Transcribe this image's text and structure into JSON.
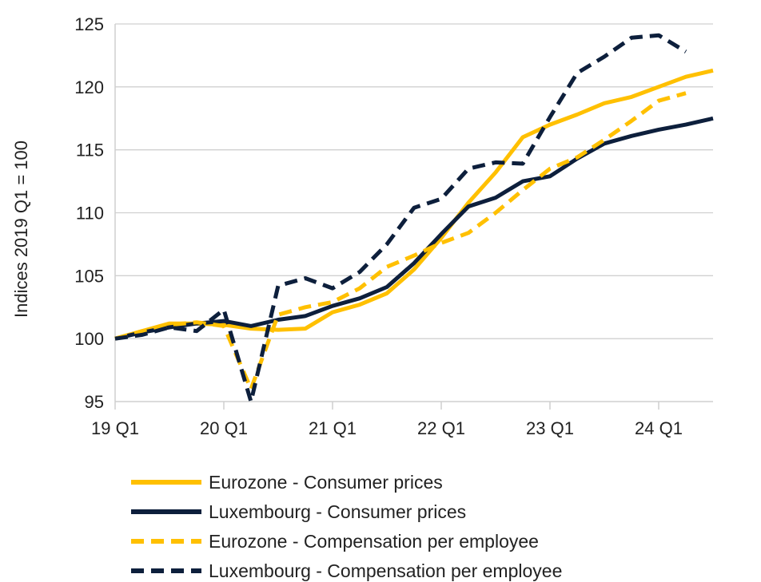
{
  "chart_data": {
    "type": "line",
    "ylabel": "Indices 2019 Q1 = 100",
    "ylim": [
      95,
      125
    ],
    "yticks": [
      95,
      100,
      105,
      110,
      115,
      120,
      125
    ],
    "x_quarters": [
      "19 Q1",
      "19 Q2",
      "19 Q3",
      "19 Q4",
      "20 Q1",
      "20 Q2",
      "20 Q3",
      "20 Q4",
      "21 Q1",
      "21 Q2",
      "21 Q3",
      "21 Q4",
      "22 Q1",
      "22 Q2",
      "22 Q3",
      "22 Q4",
      "23 Q1",
      "23 Q2",
      "23 Q3",
      "23 Q4",
      "24 Q1",
      "24 Q2",
      "24 Q3"
    ],
    "xtick_labels": [
      "19 Q1",
      "20 Q1",
      "21 Q1",
      "22 Q1",
      "23 Q1",
      "24 Q1"
    ],
    "xtick_positions": [
      0,
      4,
      8,
      12,
      16,
      20
    ],
    "grid": "horizontal",
    "legend_position": "bottom",
    "series": [
      {
        "name": "Eurozone - Consumer prices",
        "color": "#FFC000",
        "style": "solid",
        "values": [
          100.0,
          100.6,
          101.2,
          101.2,
          101.1,
          100.8,
          100.7,
          100.8,
          102.1,
          102.7,
          103.6,
          105.5,
          108.0,
          110.8,
          113.2,
          116.0,
          117.0,
          117.8,
          118.7,
          119.2,
          120.0,
          120.8,
          121.3
        ]
      },
      {
        "name": "Luxembourg - Consumer prices",
        "color": "#0D1F3C",
        "style": "solid",
        "values": [
          100.0,
          100.5,
          100.9,
          101.2,
          101.4,
          101.0,
          101.5,
          101.8,
          102.6,
          103.2,
          104.1,
          106.0,
          108.3,
          110.5,
          111.2,
          112.5,
          112.9,
          114.3,
          115.5,
          116.1,
          116.6,
          117.0,
          117.5
        ]
      },
      {
        "name": "Eurozone - Compensation per employee",
        "color": "#FFC000",
        "style": "dashed",
        "values": [
          100.0,
          100.6,
          101.1,
          101.3,
          101.0,
          96.0,
          101.9,
          102.5,
          102.9,
          104.0,
          105.7,
          106.6,
          107.6,
          108.4,
          110.0,
          111.8,
          113.5,
          114.4,
          115.8,
          117.3,
          118.9,
          119.5
        ]
      },
      {
        "name": "Luxembourg - Compensation per employee",
        "color": "#0D1F3C",
        "style": "dashed",
        "values": [
          100.0,
          100.3,
          100.9,
          100.6,
          102.3,
          95.0,
          104.2,
          104.8,
          104.0,
          105.3,
          107.5,
          110.4,
          111.1,
          113.5,
          114.0,
          113.9,
          117.6,
          121.1,
          122.4,
          123.9,
          124.1,
          122.8
        ]
      }
    ]
  }
}
